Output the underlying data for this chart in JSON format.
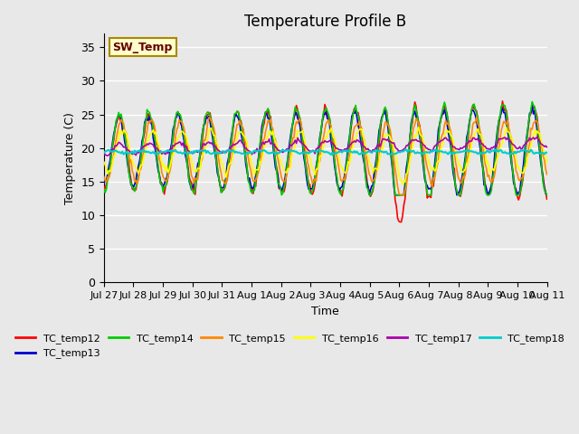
{
  "title": "Temperature Profile B",
  "xlabel": "Time",
  "ylabel": "Temperature (C)",
  "ylim": [
    0,
    37
  ],
  "yticks": [
    0,
    5,
    10,
    15,
    20,
    25,
    30,
    35
  ],
  "series_colors": {
    "TC_temp12": "#ff0000",
    "TC_temp13": "#0000cc",
    "TC_temp14": "#00cc00",
    "TC_temp15": "#ff8800",
    "TC_temp16": "#ffff00",
    "TC_temp17": "#aa00aa",
    "TC_temp18": "#00cccc"
  },
  "legend_label": "SW_Temp",
  "legend_box_color": "#ffffcc",
  "legend_box_edge": "#aa8800",
  "x_tick_labels": [
    "Jul 27",
    "Jul 28",
    "Jul 29",
    "Jul 30",
    "Jul 31",
    "Aug 1",
    "Aug 2",
    "Aug 3",
    "Aug 4",
    "Aug 5",
    "Aug 6",
    "Aug 7",
    "Aug 8",
    "Aug 9",
    "Aug 10",
    "Aug 11"
  ],
  "background_color": "#e8e8e8",
  "plot_bg_color": "#e8e8e8",
  "grid_color": "#ffffff",
  "n_days": 15,
  "points_per_day": 24
}
